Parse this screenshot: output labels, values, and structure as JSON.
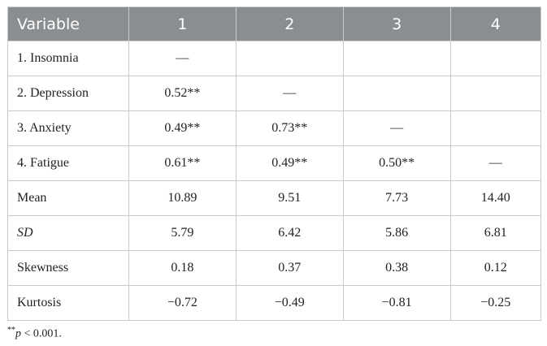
{
  "table": {
    "header": [
      "Variable",
      "1",
      "2",
      "3",
      "4"
    ],
    "rows": [
      [
        "1. Insomnia",
        "—",
        null,
        null,
        null
      ],
      [
        "2. Depression",
        "0.52**",
        "—",
        null,
        null
      ],
      [
        "3. Anxiety",
        "0.49**",
        "0.73**",
        "—",
        null
      ],
      [
        "4. Fatigue",
        "0.61**",
        "0.49**",
        "0.50**",
        "—"
      ],
      [
        "Mean",
        "10.89",
        "9.51",
        "7.73",
        "14.40"
      ],
      [
        "SD",
        "5.79",
        "6.42",
        "5.86",
        "6.81"
      ],
      [
        "Skewness",
        "0.18",
        "0.37",
        "0.38",
        "0.12"
      ],
      [
        "Kurtosis",
        "−0.72",
        "−0.49",
        "−0.81",
        "−0.25"
      ]
    ],
    "italic_row_labels": [
      "SD"
    ]
  },
  "footnote": {
    "marker": "**",
    "symbol": "p",
    "text": " < 0.001."
  }
}
